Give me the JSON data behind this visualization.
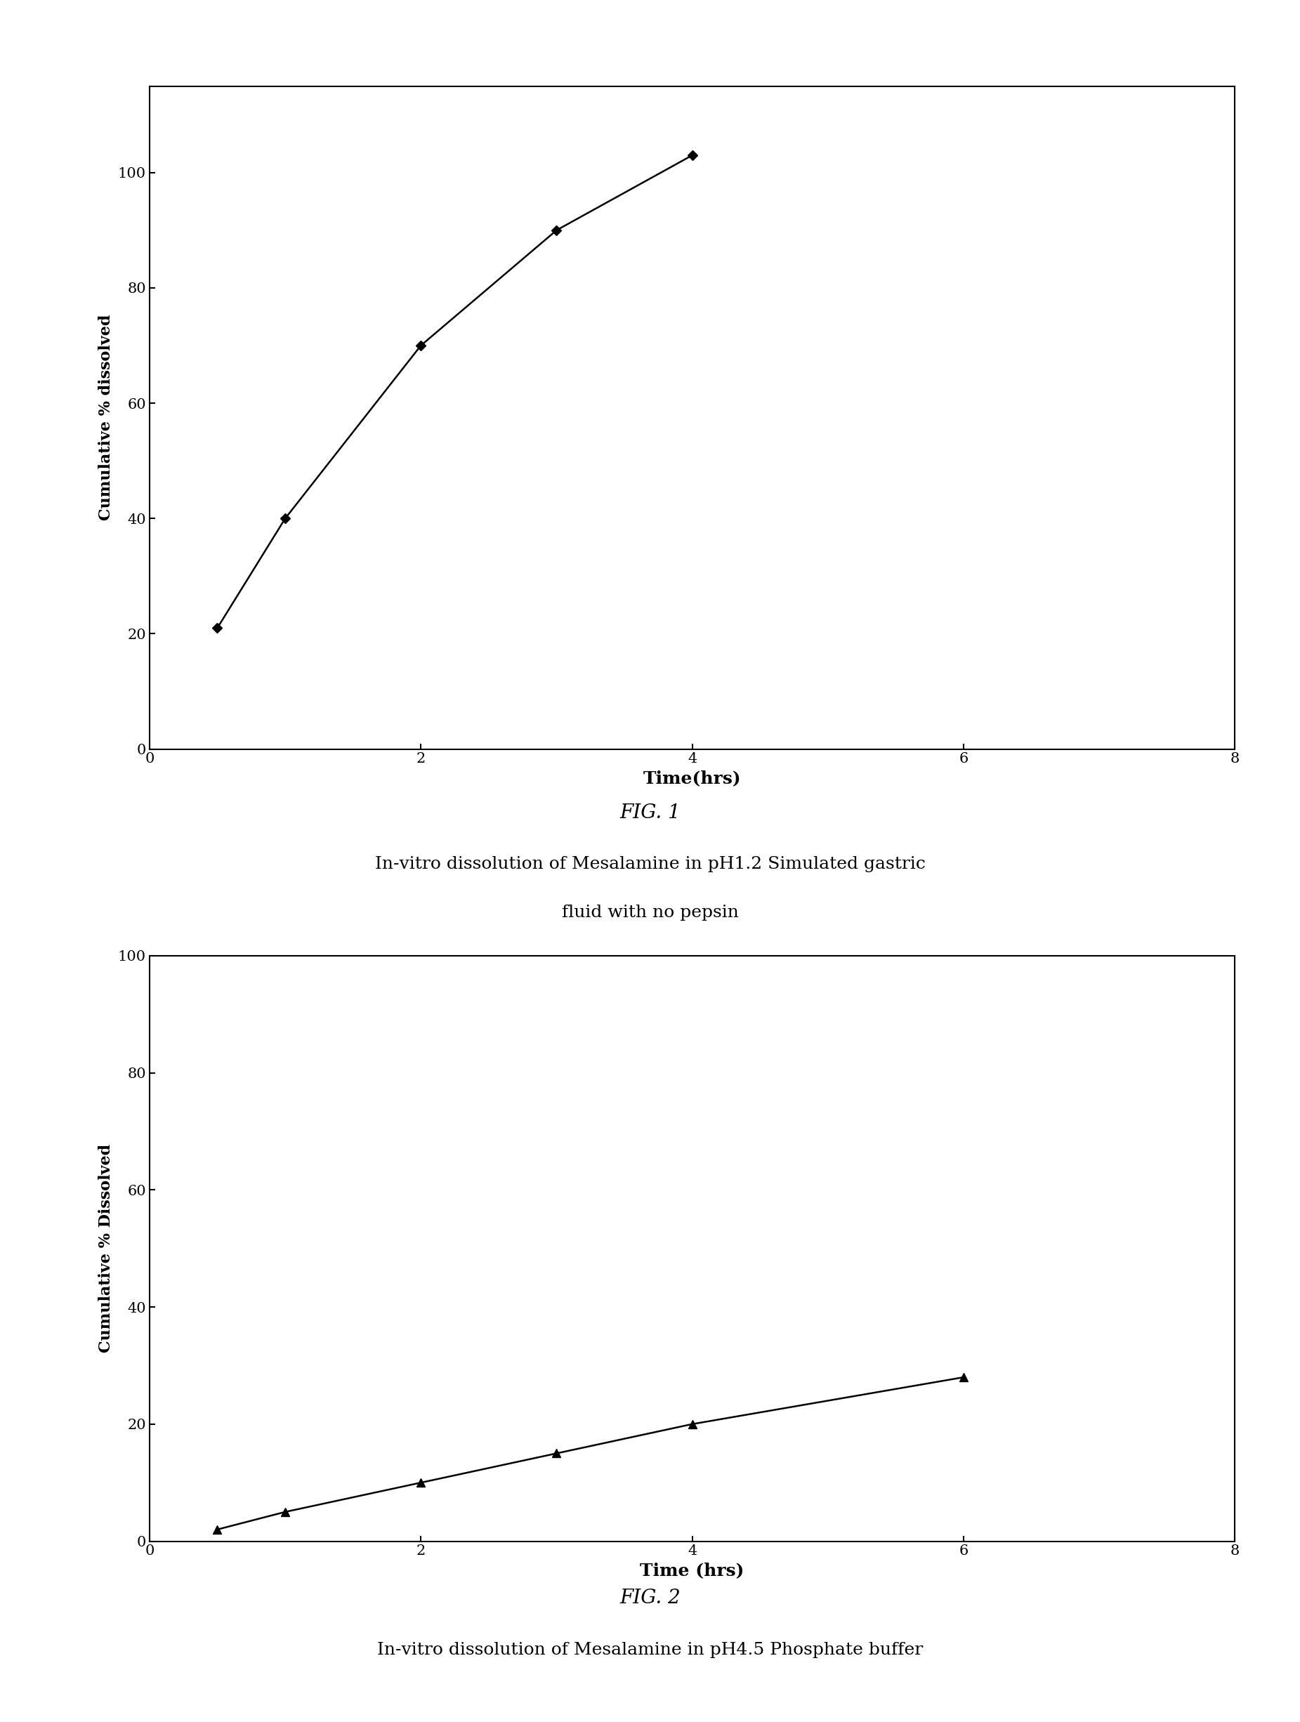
{
  "fig1": {
    "x": [
      0.5,
      1.0,
      2.0,
      3.0,
      4.0
    ],
    "y": [
      21,
      40,
      70,
      90,
      103
    ],
    "xlabel": "Time(hrs)",
    "ylabel": "Cumulative % dissolved",
    "xlim": [
      0,
      8
    ],
    "ylim": [
      0,
      115
    ],
    "yticks": [
      0,
      20,
      40,
      60,
      80,
      100
    ],
    "xticks": [
      0,
      2,
      4,
      6,
      8
    ],
    "marker": "D",
    "markersize": 7,
    "title_label": "FIG. 1",
    "caption_line1": "In-vitro dissolution of Mesalamine in pH1.2 Simulated gastric",
    "caption_line2": "fluid with no pepsin"
  },
  "fig2": {
    "x": [
      0.5,
      1.0,
      2.0,
      3.0,
      4.0,
      6.0
    ],
    "y": [
      2,
      5,
      10,
      15,
      20,
      28
    ],
    "xlabel": "Time (hrs)",
    "ylabel": "Cumulative % Dissolved",
    "xlim": [
      0,
      8
    ],
    "ylim": [
      0,
      100
    ],
    "yticks": [
      0,
      20,
      40,
      60,
      80,
      100
    ],
    "xticks": [
      0,
      2,
      4,
      6,
      8
    ],
    "marker": "^",
    "markersize": 8,
    "title_label": "FIG. 2",
    "caption": "In-vitro dissolution of Mesalamine in pH4.5 Phosphate buffer"
  },
  "line_color": "#000000",
  "background_color": "#ffffff",
  "font_family": "DejaVu Serif"
}
